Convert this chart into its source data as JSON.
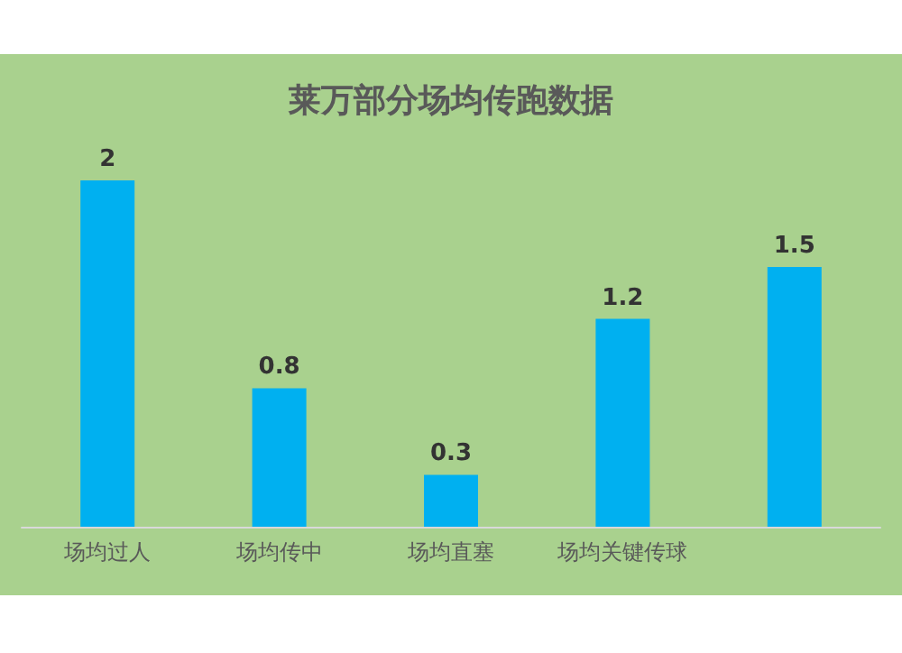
{
  "chart_data": {
    "type": "bar",
    "title": "莱万部分场均传跑数据",
    "categories": [
      "场均过人",
      "场均传中",
      "场均直塞",
      "场均关键传球",
      null
    ],
    "values": [
      2,
      0.8,
      0.3,
      1.2,
      1.5
    ],
    "color": "#00b0f0",
    "data_labels": true
  }
}
